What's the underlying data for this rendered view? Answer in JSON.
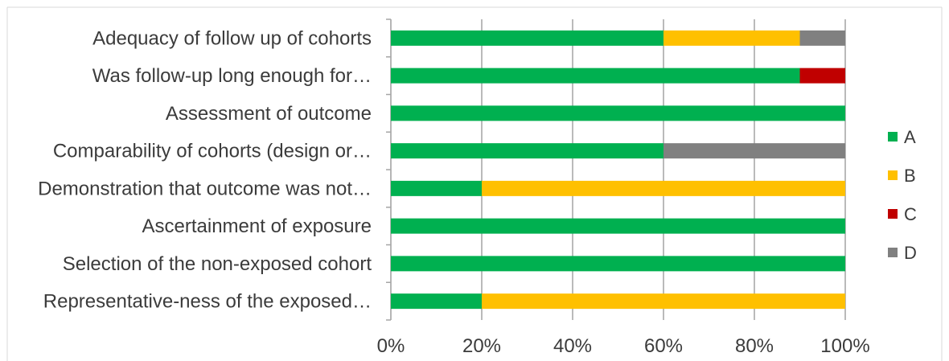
{
  "chart_data": {
    "type": "bar",
    "orientation": "horizontal",
    "stacked": "percent",
    "categories": [
      "Adequacy of follow up of cohorts",
      "Was follow-up long enough for…",
      "Assessment of outcome",
      "Comparability of cohorts (design or…",
      "Demonstration that outcome was not…",
      "Ascertainment of exposure",
      "Selection of the non-exposed cohort",
      "Representative-ness of the exposed…"
    ],
    "series": [
      {
        "name": "A",
        "color": "#00b050",
        "values": [
          60,
          90,
          100,
          60,
          20,
          100,
          100,
          20
        ]
      },
      {
        "name": "B",
        "color": "#ffc000",
        "values": [
          30,
          0,
          0,
          0,
          80,
          0,
          0,
          80
        ]
      },
      {
        "name": "C",
        "color": "#c00000",
        "values": [
          0,
          10,
          0,
          0,
          0,
          0,
          0,
          0
        ]
      },
      {
        "name": "D",
        "color": "#808080",
        "values": [
          10,
          0,
          0,
          40,
          0,
          0,
          0,
          0
        ]
      }
    ],
    "x_ticks": [
      "0%",
      "20%",
      "40%",
      "60%",
      "80%",
      "100%"
    ],
    "xlim": [
      0,
      100
    ],
    "grid": true,
    "legend_position": "right"
  }
}
